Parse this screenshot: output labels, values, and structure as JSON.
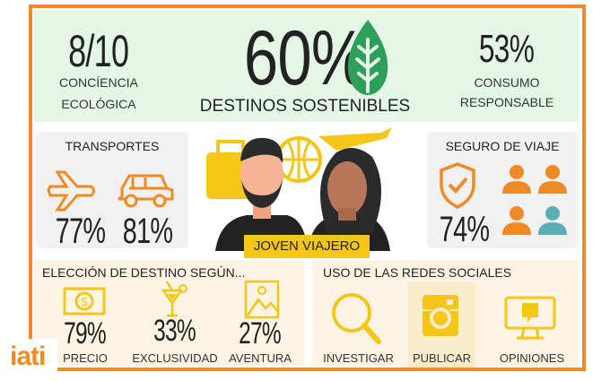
{
  "top": {
    "left": {
      "value": "8/10",
      "label1": "CONCÍENCIA",
      "label2": "ECOLÓGICA"
    },
    "center": {
      "value": "60%",
      "label": "DESTINOS SOSTENIBLES",
      "icon": "leaf-icon"
    },
    "right": {
      "value": "53%",
      "label1": "CONSUMO",
      "label2": "RESPONSABLE"
    }
  },
  "transportes": {
    "title": "TRANSPORTES",
    "items": [
      {
        "icon": "plane-icon",
        "value": "77%"
      },
      {
        "icon": "car-icon",
        "value": "81%"
      }
    ]
  },
  "center_badge": "JOVEN VIAJERO",
  "seguro": {
    "title": "SEGURO DE VIAJE",
    "value": "74%",
    "icon": "shield-check-icon"
  },
  "eleccion": {
    "title": "ELECCIÓN DE DESTINO SEGÚN...",
    "items": [
      {
        "icon": "money-icon",
        "value": "79%",
        "label": "PRECIO"
      },
      {
        "icon": "cocktail-icon",
        "value": "33%",
        "label": "EXCLUSIVIDAD"
      },
      {
        "icon": "landscape-icon",
        "value": "27%",
        "label": "AVENTURA"
      }
    ]
  },
  "redes": {
    "title": "USO DE LAS REDES SOCIALES",
    "items": [
      {
        "icon": "magnifier-icon",
        "label": "INVESTIGAR"
      },
      {
        "icon": "instagram-icon",
        "label": "PUBLICAR"
      },
      {
        "icon": "monitor-comment-icon",
        "label": "OPINIONES"
      }
    ]
  },
  "logo": "iati",
  "colors": {
    "orange": "#f08a24",
    "green": "#2e9e5b",
    "yellow": "#f5c518",
    "teal": "#5aaeb5"
  }
}
